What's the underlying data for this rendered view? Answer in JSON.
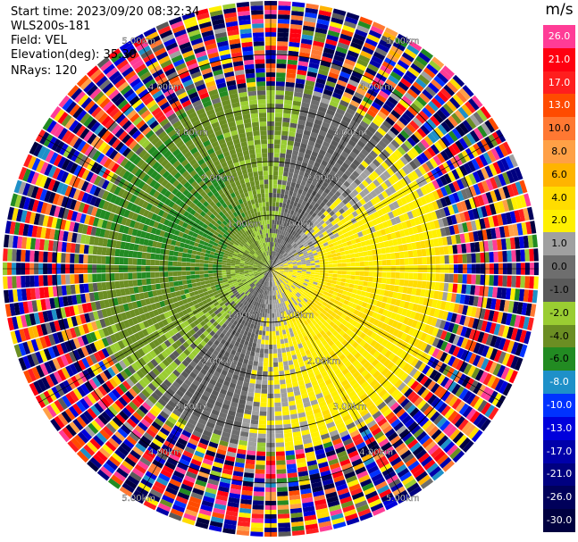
{
  "header": {
    "start_time": "Start time: 2023/09/20 08:32:34",
    "station": "WLS200s-181",
    "field": "Field: VEL",
    "elevation": "Elevation(deg): 35.30",
    "nrays": "NRays: 120"
  },
  "colorbar": {
    "unit": "m/s",
    "levels": [
      {
        "label": "26.0",
        "color": "#ff3c96"
      },
      {
        "label": "21.0",
        "color": "#ff0010"
      },
      {
        "label": "17.0",
        "color": "#ff1e1e"
      },
      {
        "label": "13.0",
        "color": "#ff4b00"
      },
      {
        "label": "10.0",
        "color": "#ff7832"
      },
      {
        "label": "8.0",
        "color": "#ffa046"
      },
      {
        "label": "6.0",
        "color": "#ffb400"
      },
      {
        "label": "4.0",
        "color": "#ffdc00"
      },
      {
        "label": "2.0",
        "color": "#fff000"
      },
      {
        "label": "1.0",
        "color": "#a0a0a0"
      },
      {
        "label": "0.0",
        "color": "#6e6e6e"
      },
      {
        "label": "-1.0",
        "color": "#5a5a5a"
      },
      {
        "label": "-2.0",
        "color": "#9acd32"
      },
      {
        "label": "-4.0",
        "color": "#6b8e23"
      },
      {
        "label": "-6.0",
        "color": "#228b22"
      },
      {
        "label": "-8.0",
        "color": "#1e90c8"
      },
      {
        "label": "-10.0",
        "color": "#0032ff"
      },
      {
        "label": "-13.0",
        "color": "#0000dc"
      },
      {
        "label": "-17.0",
        "color": "#0000aa"
      },
      {
        "label": "-21.0",
        "color": "#000080"
      },
      {
        "label": "-26.0",
        "color": "#00005a"
      },
      {
        "label": "-30.0",
        "color": "#000040"
      }
    ]
  },
  "chart_data": {
    "type": "heatmap",
    "projection": "polar PPI scan",
    "field": "VEL",
    "units": "m/s",
    "rays": 120,
    "range_rings_km": [
      1.0,
      2.0,
      3.0,
      4.0
    ],
    "ring_labels": [
      "1.00km",
      "2.00km",
      "3.00km",
      "4.00km",
      "5.00km"
    ],
    "max_range_km": 5.0,
    "spoke_angles_deg": [
      0,
      30,
      60,
      90,
      120,
      150,
      180,
      210,
      240,
      270,
      300,
      330
    ],
    "vmin": -30.0,
    "vmax": 30.0,
    "pattern": {
      "near_field_below_km": 3.2,
      "noise_beyond_km": 3.4,
      "positive_side": "east / south-east sectors (yellow, ~2-4 m/s)",
      "negative_side": "west / north-west sectors (green, ~-2 to -4 m/s)",
      "zero_band": "grey band along north-east to south-west"
    }
  }
}
